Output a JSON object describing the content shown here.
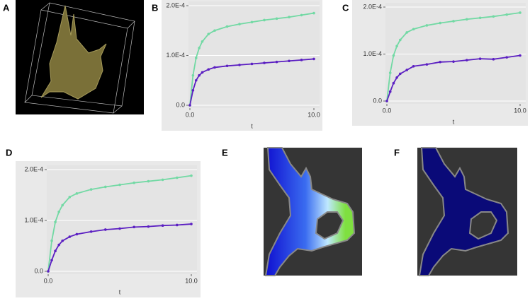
{
  "panels": {
    "a": "A",
    "b": "B",
    "c": "C",
    "d": "D",
    "e": "E",
    "f": "F"
  },
  "chart_data": [
    {
      "type": "line",
      "xlabel": "t",
      "x": [
        0,
        0.25,
        0.5,
        0.75,
        1,
        1.5,
        2,
        3,
        4,
        5,
        6,
        7,
        8,
        9,
        10
      ],
      "series": [
        {
          "color": "#72d9a4",
          "values": [
            0,
            6e-05,
            9.5e-05,
            0.000115,
            0.000128,
            0.000143,
            0.00015,
            0.000158,
            0.000163,
            0.000167,
            0.000171,
            0.000174,
            0.000177,
            0.000181,
            0.000185
          ]
        },
        {
          "color": "#5b1fc2",
          "values": [
            0,
            3e-05,
            5e-05,
            6e-05,
            6.6e-05,
            7.2e-05,
            7.6e-05,
            7.9e-05,
            8.1e-05,
            8.3e-05,
            8.5e-05,
            8.7e-05,
            8.9e-05,
            9.1e-05,
            9.3e-05
          ]
        }
      ],
      "xlim": [
        0,
        10
      ],
      "ylim": [
        0,
        0.0002
      ],
      "xticks": [
        {
          "value": 0,
          "label": "0.0"
        },
        {
          "value": 10,
          "label": "10.0"
        }
      ],
      "yticks": [
        {
          "value": 0,
          "label": "0.0"
        },
        {
          "value": 0.0001,
          "label": "1.0E-4"
        },
        {
          "value": 0.0002,
          "label": "2.0E-4"
        }
      ]
    },
    {
      "type": "line",
      "xlabel": "t",
      "x": [
        0,
        0.25,
        0.5,
        0.75,
        1,
        1.5,
        2,
        3,
        4,
        5,
        6,
        7,
        8,
        9,
        10
      ],
      "series": [
        {
          "color": "#72d9a4",
          "values": [
            0,
            6e-05,
            9.7e-05,
            0.000117,
            0.00013,
            0.000146,
            0.000153,
            0.000161,
            0.000166,
            0.00017,
            0.000174,
            0.000177,
            0.00018,
            0.000184,
            0.000188
          ]
        },
        {
          "color": "#5b1fc2",
          "values": [
            0,
            2e-05,
            3.8e-05,
            5e-05,
            5.8e-05,
            6.6e-05,
            7.4e-05,
            7.8e-05,
            8.3e-05,
            8.4e-05,
            8.7e-05,
            9e-05,
            8.9e-05,
            9.3e-05,
            9.7e-05
          ]
        }
      ],
      "xlim": [
        0,
        10
      ],
      "ylim": [
        0,
        0.0002
      ],
      "xticks": [
        {
          "value": 0,
          "label": "0.0"
        },
        {
          "value": 10,
          "label": "10.0"
        }
      ],
      "yticks": [
        {
          "value": 0,
          "label": "0.0"
        },
        {
          "value": 0.0001,
          "label": "1.0E-4"
        },
        {
          "value": 0.0002,
          "label": "2.0E-4"
        }
      ]
    },
    {
      "type": "line",
      "xlabel": "t",
      "x": [
        0,
        0.25,
        0.5,
        0.75,
        1,
        1.5,
        2,
        3,
        4,
        5,
        6,
        7,
        8,
        9,
        10
      ],
      "series": [
        {
          "color": "#72d9a4",
          "values": [
            0,
            6e-05,
            9.7e-05,
            0.000117,
            0.00013,
            0.000146,
            0.000153,
            0.000161,
            0.000166,
            0.00017,
            0.000174,
            0.000177,
            0.00018,
            0.000184,
            0.000188
          ]
        },
        {
          "color": "#5b1fc2",
          "values": [
            0,
            2.2e-05,
            4e-05,
            5.2e-05,
            6e-05,
            6.8e-05,
            7.3e-05,
            7.8e-05,
            8.2e-05,
            8.4e-05,
            8.7e-05,
            8.8e-05,
            9e-05,
            9.1e-05,
            9.3e-05
          ]
        }
      ],
      "xlim": [
        0,
        10
      ],
      "ylim": [
        0,
        0.0002
      ],
      "xticks": [
        {
          "value": 0,
          "label": "0.0"
        },
        {
          "value": 10,
          "label": "10.0"
        }
      ],
      "yticks": [
        {
          "value": 0,
          "label": "0.0"
        },
        {
          "value": 0.0001,
          "label": "1.0E-4"
        },
        {
          "value": 0.0002,
          "label": "2.0E-4"
        }
      ]
    }
  ]
}
